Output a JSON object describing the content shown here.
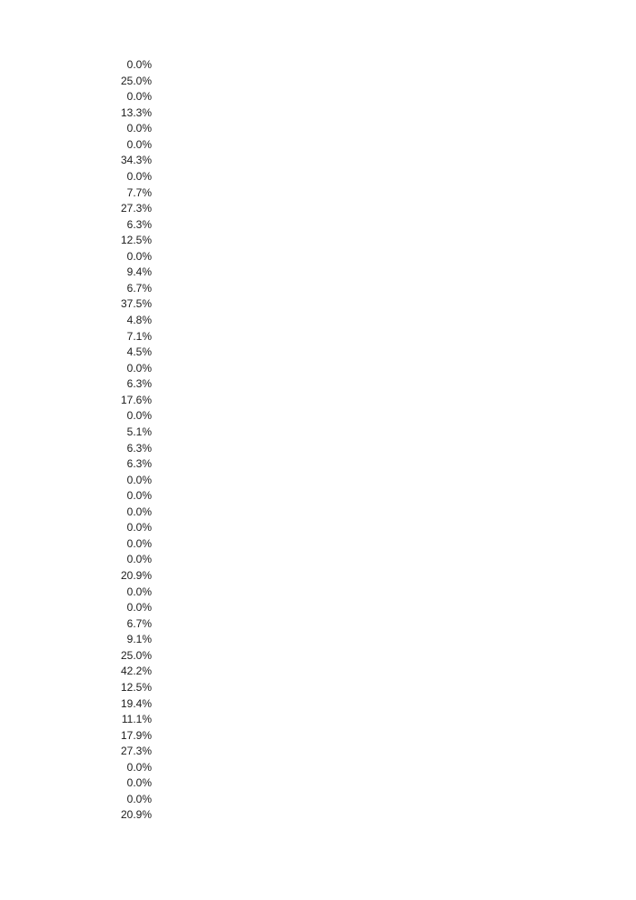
{
  "page": {
    "background_color": "#ffffff",
    "text_color": "#1c1c1c"
  },
  "values_column": {
    "alignment": "right",
    "format": "percentage",
    "values": [
      "0.0%",
      "25.0%",
      "0.0%",
      "13.3%",
      "0.0%",
      "0.0%",
      "34.3%",
      "0.0%",
      "7.7%",
      "27.3%",
      "6.3%",
      "12.5%",
      "0.0%",
      "9.4%",
      "6.7%",
      "37.5%",
      "4.8%",
      "7.1%",
      "4.5%",
      "0.0%",
      "6.3%",
      "17.6%",
      "0.0%",
      "5.1%",
      "6.3%",
      "6.3%",
      "0.0%",
      "0.0%",
      "0.0%",
      "0.0%",
      "0.0%",
      "0.0%",
      "20.9%",
      "0.0%",
      "0.0%",
      "6.7%",
      "9.1%",
      "25.0%",
      "42.2%",
      "12.5%",
      "19.4%",
      "11.1%",
      "17.9%",
      "27.3%",
      "0.0%",
      "0.0%",
      "0.0%",
      "20.9%"
    ]
  }
}
